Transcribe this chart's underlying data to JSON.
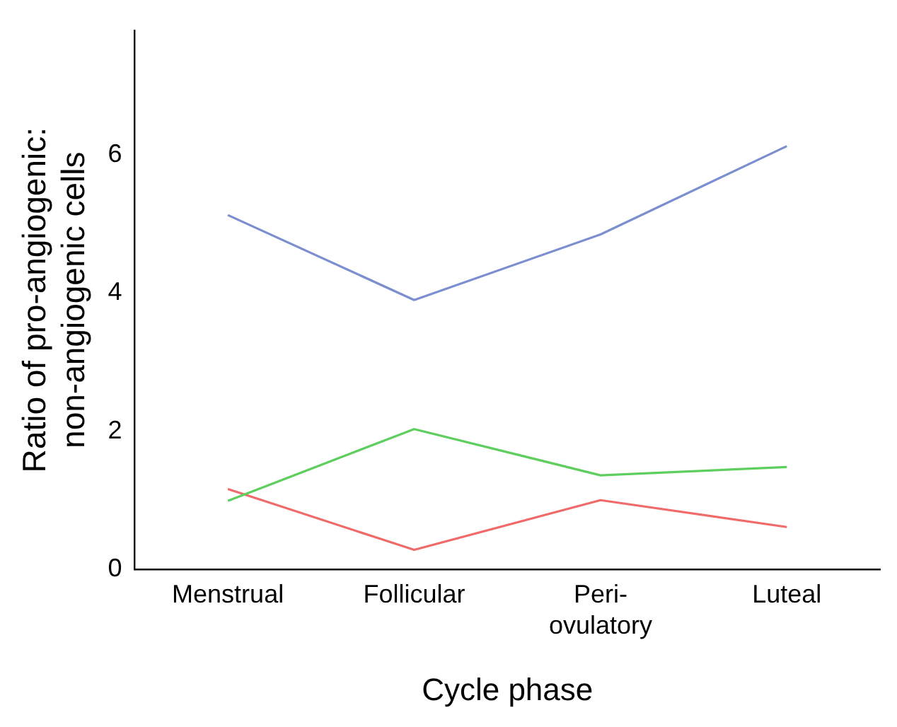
{
  "chart_data": {
    "type": "line",
    "xlabel": "Cycle phase",
    "ylabel": "Ratio of pro-angiogenic:\nnon-angiogenic cells",
    "categories": [
      "Menstrual",
      "Follicular",
      "Peri-\novulatory",
      "Luteal"
    ],
    "series": [
      {
        "color": "#7b8fd0",
        "values": [
          5.13,
          3.9,
          4.85,
          6.13
        ]
      },
      {
        "color": "#5ecf5e",
        "values": [
          0.99,
          2.03,
          1.36,
          1.48
        ]
      },
      {
        "color": "#f06a6a",
        "values": [
          1.16,
          0.28,
          1.0,
          0.61
        ]
      }
    ],
    "ylim": [
      0,
      7.8
    ],
    "yticks": [
      0,
      2,
      4,
      6
    ],
    "grid": false,
    "legend": false,
    "marker": "none",
    "line_style": "solid"
  }
}
